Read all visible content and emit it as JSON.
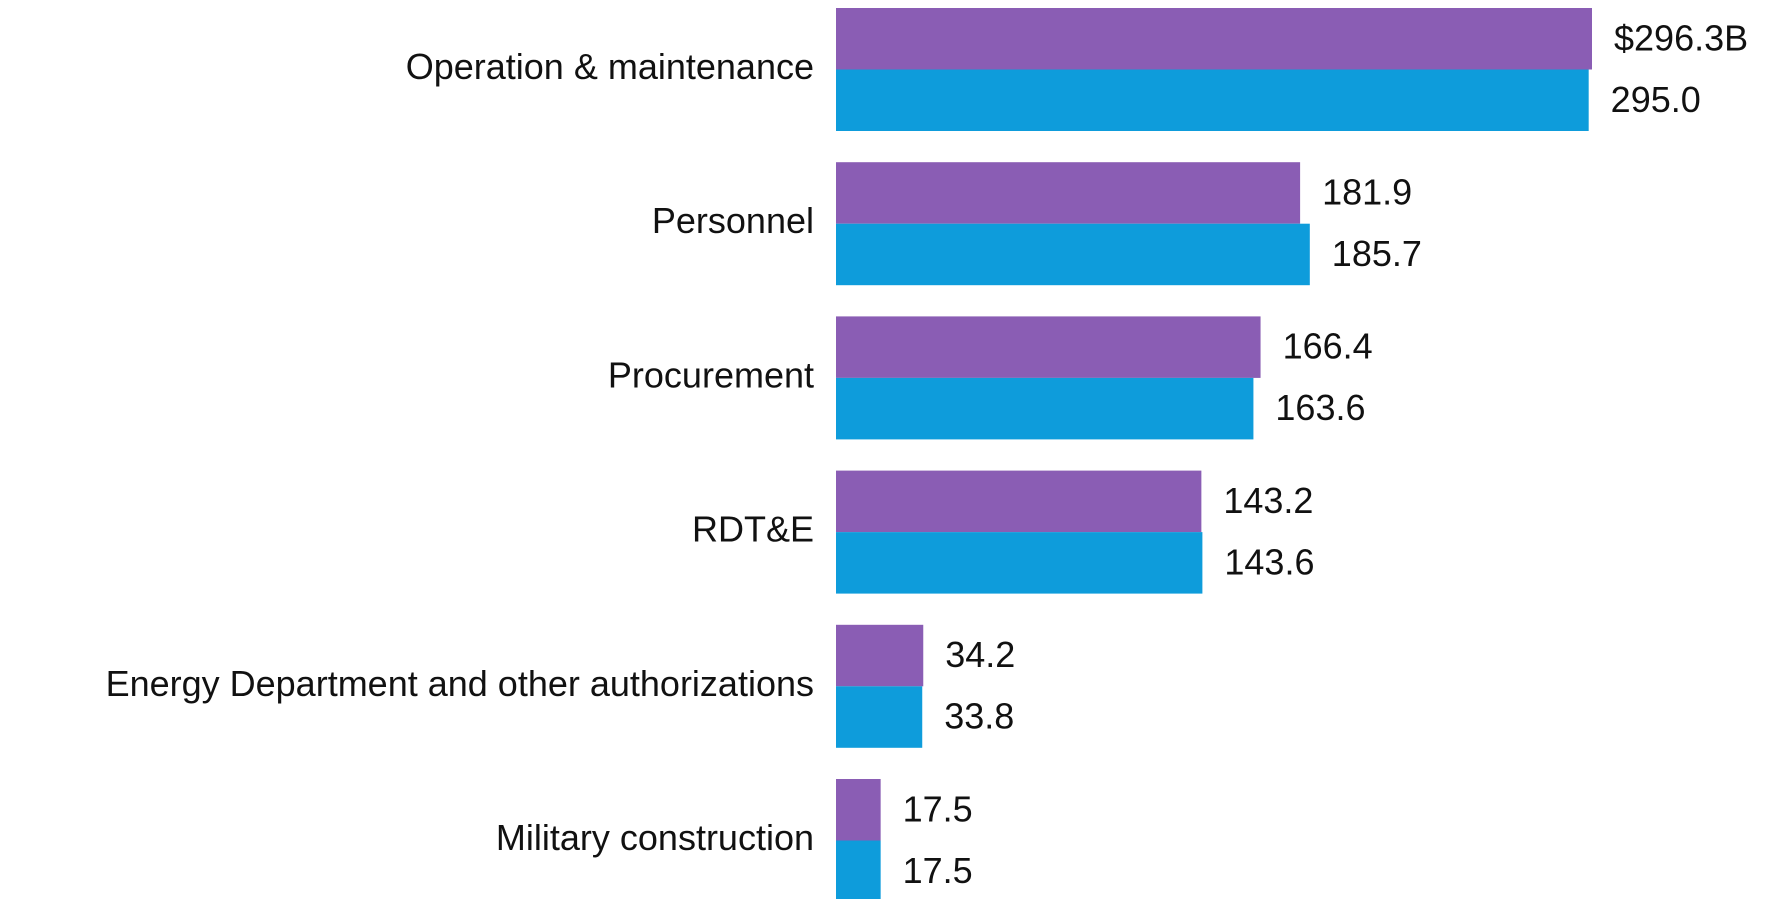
{
  "chart_data": {
    "type": "bar",
    "orientation": "horizontal",
    "categories": [
      "Operation & maintenance",
      "Personnel",
      "Procurement",
      "RDT&E",
      "Energy Department and other authorizations",
      "Military construction"
    ],
    "series": [
      {
        "color": "#8a5db4",
        "values": [
          296.3,
          181.9,
          166.4,
          143.2,
          34.2,
          17.5
        ],
        "value_labels": [
          "$296.3B",
          "181.9",
          "166.4",
          "143.2",
          "34.2",
          "17.5"
        ]
      },
      {
        "color": "#0e9cdb",
        "values": [
          295.0,
          185.7,
          163.6,
          143.6,
          33.8,
          17.5
        ],
        "value_labels": [
          "295.0",
          "185.7",
          "163.6",
          "143.6",
          "33.8",
          "17.5"
        ]
      }
    ]
  }
}
